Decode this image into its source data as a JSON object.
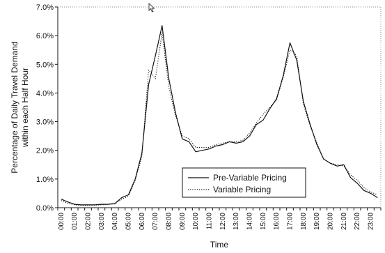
{
  "chart_data": {
    "type": "line",
    "xlabel": "Time",
    "ylabel_lines": [
      "Percentage of  Daily Travel Demand",
      "within each Half Hour"
    ],
    "y_ticks": [
      "0.0%",
      "1.0%",
      "2.0%",
      "3.0%",
      "4.0%",
      "5.0%",
      "6.0%",
      "7.0%"
    ],
    "ylim": [
      0,
      7
    ],
    "x_ticks": [
      "00:00",
      "01:00",
      "02:00",
      "03:00",
      "04:00",
      "05:00",
      "06:00",
      "07:00",
      "08:00",
      "09:00",
      "10:00",
      "11:00",
      "12:00",
      "13:00",
      "14:00",
      "15:00",
      "16:00",
      "17:00",
      "18:00",
      "19:00",
      "20:00",
      "21:00",
      "22:00",
      "23:00"
    ],
    "x": [
      "00:00",
      "00:30",
      "01:00",
      "01:30",
      "02:00",
      "02:30",
      "03:00",
      "03:30",
      "04:00",
      "04:30",
      "05:00",
      "05:30",
      "06:00",
      "06:30",
      "07:00",
      "07:30",
      "08:00",
      "08:30",
      "09:00",
      "09:30",
      "10:00",
      "10:30",
      "11:00",
      "11:30",
      "12:00",
      "12:30",
      "13:00",
      "13:30",
      "14:00",
      "14:30",
      "15:00",
      "15:30",
      "16:00",
      "16:30",
      "17:00",
      "17:30",
      "18:00",
      "18:30",
      "19:00",
      "19:30",
      "20:00",
      "20:30",
      "21:00",
      "21:30",
      "22:00",
      "22:30",
      "23:00",
      "23:30"
    ],
    "series": [
      {
        "name": "Pre-Variable Pricing",
        "style": "solid",
        "values": [
          0.3,
          0.2,
          0.12,
          0.1,
          0.1,
          0.1,
          0.12,
          0.12,
          0.15,
          0.35,
          0.45,
          1.0,
          1.9,
          4.3,
          5.3,
          6.35,
          4.5,
          3.3,
          2.4,
          2.3,
          1.95,
          2.0,
          2.05,
          2.15,
          2.2,
          2.3,
          2.25,
          2.3,
          2.5,
          2.9,
          3.05,
          3.45,
          3.8,
          4.6,
          5.75,
          5.15,
          3.7,
          2.9,
          2.2,
          1.7,
          1.55,
          1.45,
          1.5,
          1.05,
          0.85,
          0.6,
          0.5,
          0.35
        ]
      },
      {
        "name": "Variable Pricing",
        "style": "dotted",
        "values": [
          0.25,
          0.15,
          0.1,
          0.08,
          0.08,
          0.09,
          0.1,
          0.12,
          0.13,
          0.3,
          0.4,
          0.95,
          1.8,
          4.8,
          4.5,
          6.1,
          4.2,
          3.2,
          2.5,
          2.4,
          2.1,
          2.1,
          2.1,
          2.2,
          2.25,
          2.3,
          2.3,
          2.35,
          2.6,
          2.95,
          3.25,
          3.5,
          3.75,
          4.55,
          5.5,
          5.3,
          3.6,
          2.85,
          2.25,
          1.7,
          1.55,
          1.5,
          1.45,
          1.15,
          0.95,
          0.7,
          0.55,
          0.45
        ]
      }
    ],
    "legend_position": "bottom-right",
    "grid": false
  }
}
